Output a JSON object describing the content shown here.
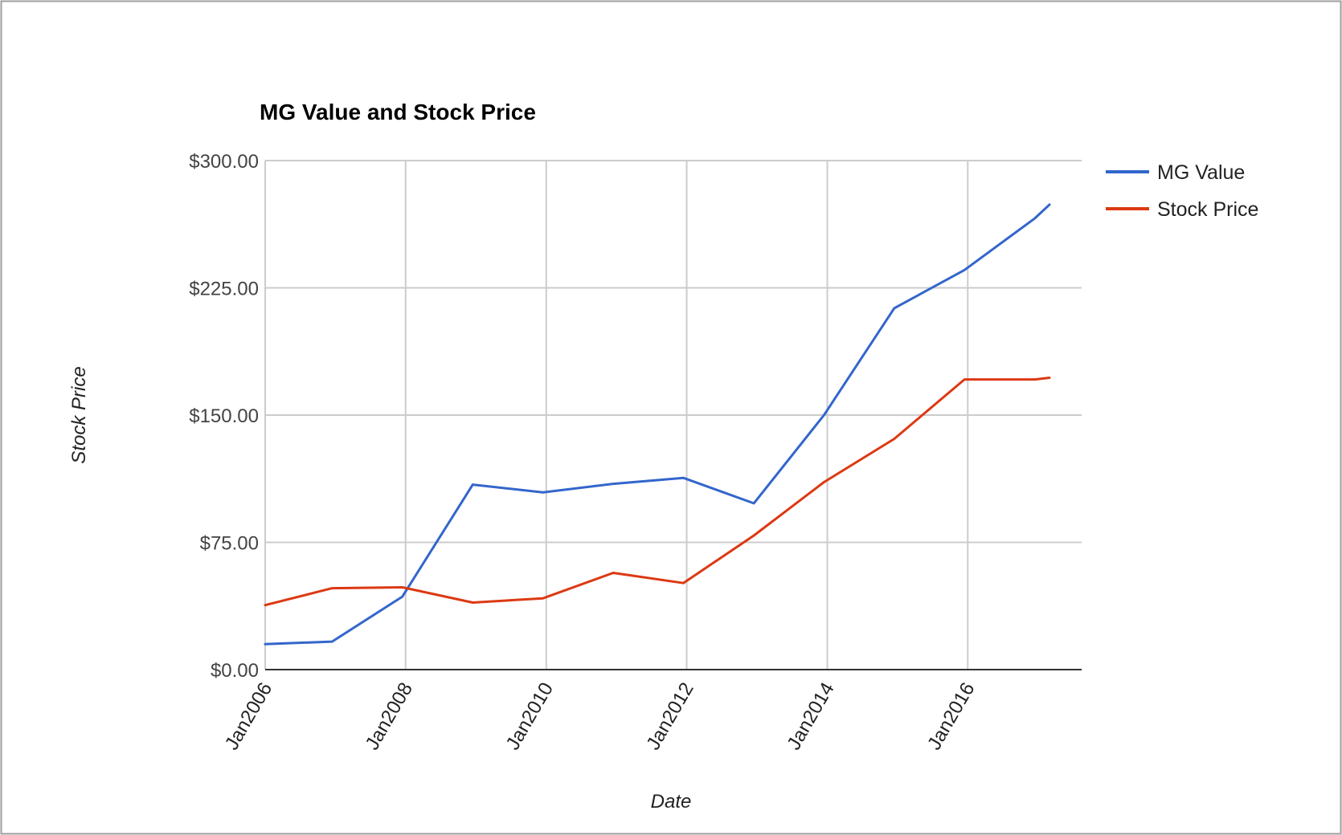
{
  "chart_data": {
    "type": "line",
    "title": "MG Value and Stock Price",
    "xlabel": "Date",
    "ylabel": "Stock Price",
    "ylim": [
      0,
      300
    ],
    "xlim": [
      "2006-01-01",
      "2017-08-15"
    ],
    "yticks": [
      "$0.00",
      "$75.00",
      "$150.00",
      "$225.00",
      "$300.00"
    ],
    "ytick_values": [
      0,
      75,
      150,
      225,
      300
    ],
    "xticks": [
      "Jan2006",
      "Jan2008",
      "Jan2010",
      "Jan2012",
      "Jan2014",
      "Jan2016"
    ],
    "xtick_values": [
      "2006-01-01",
      "2008-01-01",
      "2010-01-01",
      "2012-01-01",
      "2014-01-01",
      "2016-01-01"
    ],
    "grid": true,
    "legend_position": "right",
    "series": [
      {
        "name": "MG Value",
        "color": "#3366cc",
        "x": [
          "2006-01-01",
          "2006-12-15",
          "2007-12-15",
          "2008-12-15",
          "2009-12-15",
          "2010-12-15",
          "2011-12-15",
          "2012-12-15",
          "2013-12-15",
          "2014-12-15",
          "2015-12-15",
          "2016-12-15",
          "2017-03-01"
        ],
        "values": [
          15,
          16.5,
          43,
          109,
          104.5,
          109.5,
          113,
          98,
          150,
          213,
          235.5,
          266,
          274
        ]
      },
      {
        "name": "Stock Price",
        "color": "#dc3912",
        "x": [
          "2006-01-01",
          "2006-12-15",
          "2007-12-15",
          "2008-12-15",
          "2009-12-15",
          "2010-12-15",
          "2011-12-15",
          "2012-12-15",
          "2013-12-15",
          "2014-12-15",
          "2015-12-15",
          "2016-12-15",
          "2017-03-01"
        ],
        "values": [
          38,
          48,
          48.5,
          39.5,
          42,
          57,
          51,
          79,
          110.5,
          136,
          171,
          171,
          172
        ]
      }
    ]
  }
}
